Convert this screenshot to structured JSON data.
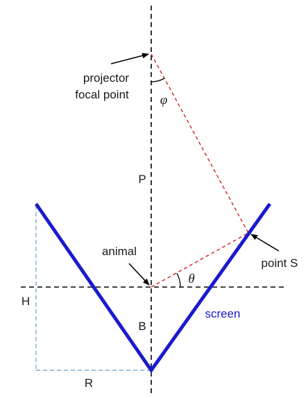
{
  "labels": {
    "projector_line1": "projector",
    "projector_line2": "focal point",
    "phi": "φ",
    "P": "P",
    "animal": "animal",
    "point_s": "point S",
    "theta": "θ",
    "H": "H",
    "B": "B",
    "screen": "screen",
    "R": "R"
  },
  "colors": {
    "screen": "#1a1acc",
    "rays": "#cc2222",
    "guides": "#7aaad6",
    "axes": "#000000",
    "text": "#1a1a1a"
  }
}
